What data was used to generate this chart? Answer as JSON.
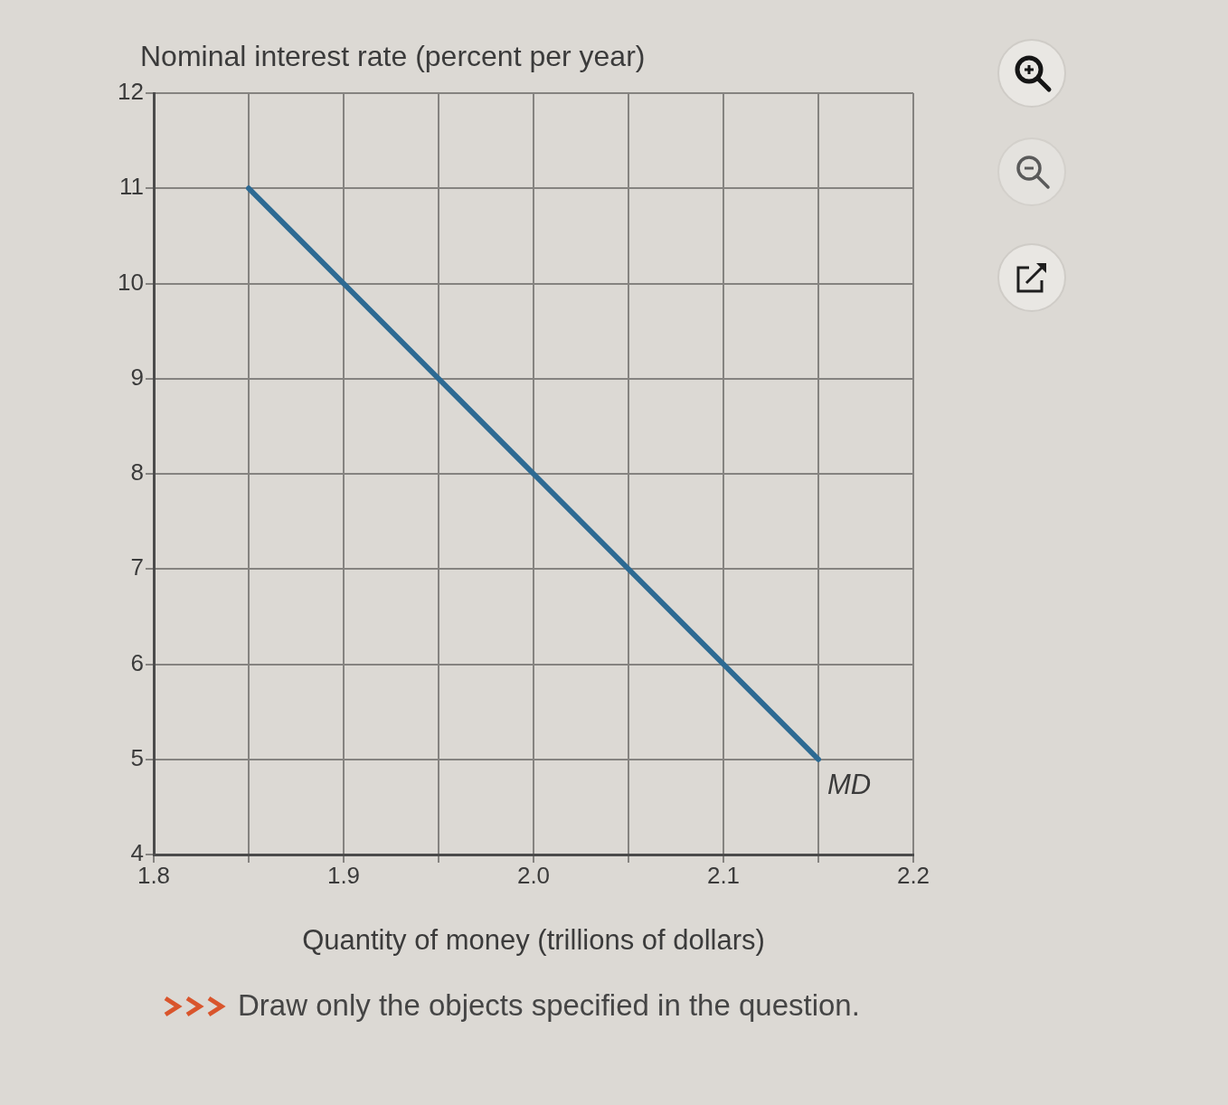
{
  "chart_data": {
    "type": "line",
    "ylabel": "Nominal interest rate (percent per year)",
    "xlabel": "Quantity of money (trillions of dollars)",
    "x": [
      1.85,
      1.9,
      1.95,
      2.0,
      2.05,
      2.1,
      2.15
    ],
    "series": [
      {
        "name": "MD",
        "color": "#2d6a93",
        "values": [
          11,
          10,
          9,
          8,
          7,
          6,
          5
        ]
      }
    ],
    "xlim": [
      1.8,
      2.2
    ],
    "xticks": [
      1.8,
      {
        "value": 1.85,
        "label": null
      },
      1.9,
      {
        "value": 1.95,
        "label": null
      },
      {
        "value": 2,
        "label": "2.0"
      },
      {
        "value": 2.05,
        "label": null
      },
      2.1,
      {
        "value": 2.15,
        "label": null
      },
      2.2
    ],
    "ylim": [
      4,
      12
    ],
    "yticks": [
      4,
      5,
      6,
      7,
      8,
      9,
      10,
      11,
      12
    ],
    "grid": true,
    "marker": "none",
    "line_style": "solid",
    "annotations": [
      "Draw only the objects specified in the question."
    ]
  }
}
